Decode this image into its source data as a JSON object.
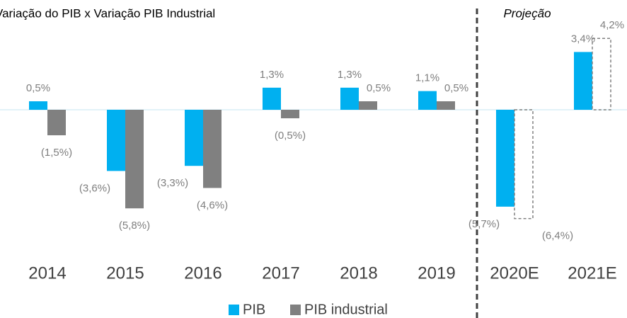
{
  "chart_data": {
    "type": "bar",
    "title": "Variação do PIB x Variação PIB Industrial",
    "annotation": "Projeção",
    "projection_from": "2020E",
    "categories": [
      "2014",
      "2015",
      "2016",
      "2017",
      "2018",
      "2019",
      "2020E",
      "2021E"
    ],
    "series": [
      {
        "name": "PIB",
        "color": "#00b0f0",
        "values": [
          0.5,
          -3.6,
          -3.3,
          1.3,
          1.3,
          1.1,
          -5.7,
          3.4
        ],
        "value_labels": [
          "0,5%",
          "(3,6%)",
          "(3,3%)",
          "1,3%",
          "1,3%",
          "1,1%",
          "(5,7%)",
          "3,4%"
        ]
      },
      {
        "name": "PIB industrial",
        "color": "#808080",
        "projected_style": "dashed",
        "values": [
          -1.5,
          -5.8,
          -4.6,
          -0.5,
          0.5,
          0.5,
          -6.4,
          4.2
        ],
        "value_labels": [
          "(1,5%)",
          "(5,8%)",
          "(4,6%)",
          "(0,5%)",
          "0,5%",
          "0,5%",
          "(6,4%)",
          "4,2%"
        ]
      }
    ],
    "ylim": [
      -8,
      5
    ]
  }
}
